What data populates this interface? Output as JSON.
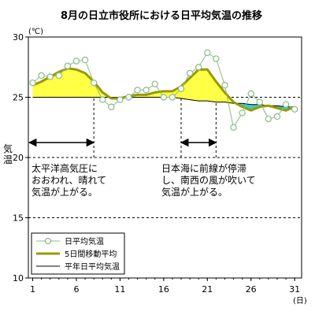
{
  "chart_data": {
    "type": "line",
    "title": "8月の日立市役所における日平均気温の推移",
    "y_unit": "(℃)",
    "x_unit": "(日)",
    "ylabel": "気温",
    "xlim": [
      1,
      31
    ],
    "ylim": [
      10,
      30
    ],
    "y_ticks": [
      10,
      15,
      20,
      25,
      30
    ],
    "x_ticks": [
      1,
      6,
      11,
      16,
      21,
      26,
      31
    ],
    "dashed_grid_y": [
      15,
      20,
      25
    ],
    "x": [
      1,
      2,
      3,
      4,
      5,
      6,
      7,
      8,
      9,
      10,
      11,
      12,
      13,
      14,
      15,
      16,
      17,
      18,
      19,
      20,
      21,
      22,
      23,
      24,
      25,
      26,
      27,
      28,
      29,
      30,
      31
    ],
    "series": [
      {
        "name": "日平均気温",
        "style": "line-marker",
        "color": "#88bb88",
        "values": [
          26.2,
          26.8,
          26.7,
          26.8,
          27.6,
          28.0,
          28.1,
          26.2,
          24.8,
          24.2,
          24.8,
          25.0,
          25.6,
          25.6,
          26.1,
          25.0,
          25.0,
          25.7,
          27.0,
          27.5,
          28.7,
          28.2,
          26.0,
          22.5,
          23.7,
          25.3,
          24.6,
          23.2,
          23.4,
          24.4,
          24.0
        ]
      },
      {
        "name": "5日間移動平均",
        "style": "thick-line",
        "color": "#999900",
        "values": [
          26.0,
          26.3,
          26.7,
          27.1,
          27.4,
          27.3,
          27.0,
          26.3,
          25.4,
          24.9,
          24.9,
          25.1,
          25.2,
          25.2,
          25.4,
          25.5,
          25.5,
          25.9,
          26.6,
          27.3,
          27.3,
          26.3,
          25.4,
          24.6,
          24.2,
          23.9,
          24.2,
          24.3,
          24.1,
          23.9,
          24.2
        ]
      },
      {
        "name": "平年日平均気温",
        "style": "thin-line",
        "color": "#000000",
        "values": [
          25.0,
          25.0,
          25.0,
          25.0,
          25.0,
          25.0,
          25.0,
          25.0,
          25.0,
          25.0,
          25.0,
          25.0,
          25.0,
          25.0,
          25.0,
          25.0,
          25.0,
          24.9,
          24.8,
          24.7,
          24.7,
          24.6,
          24.6,
          24.5,
          24.5,
          24.4,
          24.4,
          24.3,
          24.3,
          24.2,
          24.2
        ]
      }
    ],
    "warm_fill_color": "#ffff44",
    "cool_fill_color": "#33cccc",
    "annotations": [
      {
        "lines": [
          "太平洋高気圧に",
          "おおわれ、晴れて",
          "気温が上がる。"
        ],
        "day_range": [
          1,
          8
        ]
      },
      {
        "lines": [
          "日本海に前線が停滞",
          "し、南西の風が吹いて",
          "気温が上がる。"
        ],
        "day_range": [
          18,
          22
        ]
      }
    ],
    "legend_position": "bottom-left"
  }
}
